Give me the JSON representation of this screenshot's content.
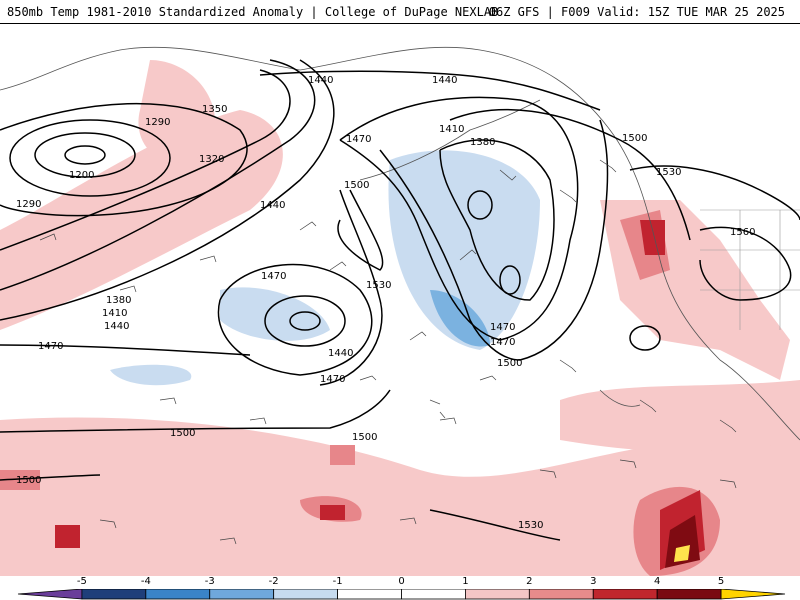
{
  "header": {
    "left_title": "850mb Temp 1981-2010 Standardized Anomaly | College of DuPage NEXLAB",
    "right_title": "06Z GFS | F009 Valid: 15Z TUE MAR 25 2025"
  },
  "contour_labels": [
    "1200",
    "1290",
    "1290",
    "1320",
    "1350",
    "1380",
    "1380",
    "1410",
    "1410",
    "1440",
    "1440",
    "1440",
    "1440",
    "1440",
    "1470",
    "1470",
    "1470",
    "1470",
    "1470",
    "1470",
    "1500",
    "1500",
    "1500",
    "1500",
    "1500",
    "1500",
    "1530",
    "1530",
    "1530",
    "1560"
  ],
  "colorbar": {
    "ticks": [
      "-5",
      "-4",
      "-3",
      "-2",
      "-1",
      "0",
      "1",
      "2",
      "3",
      "4",
      "5"
    ],
    "colors": [
      "#6a3d9a",
      "#1f3f7a",
      "#3a84c8",
      "#6fa8dc",
      "#c6dbef",
      "#ffffff",
      "#ffffff",
      "#f4c6c6",
      "#e88b8b",
      "#c0262d",
      "#7a0a12",
      "#ffd400"
    ]
  },
  "map": {
    "anomaly_colors": {
      "light_red": "#f7c9c9",
      "mid_red": "#e7868a",
      "dark_red": "#c1232f",
      "deep_red": "#7f0b12",
      "yellow": "#ffe34d",
      "light_blue": "#c9dcf0",
      "mid_blue": "#7bb2e0"
    }
  }
}
